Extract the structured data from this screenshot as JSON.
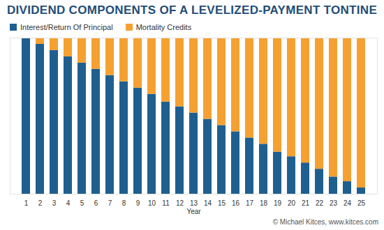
{
  "chart_data": {
    "type": "bar",
    "title": "DIVIDEND COMPONENTS OF A LEVELIZED-PAYMENT TONTINE",
    "x_label": "Year",
    "caption": "© Michael Kitces, www.kitces.com",
    "categories": [
      1,
      2,
      3,
      4,
      5,
      6,
      7,
      8,
      9,
      10,
      11,
      12,
      13,
      14,
      15,
      16,
      17,
      18,
      19,
      20,
      21,
      22,
      23,
      24,
      25
    ],
    "series": [
      {
        "name": "Interest/Return Of Principal",
        "color": "#1f5f8f",
        "values": [
          100,
          96,
          92,
          88,
          84,
          80,
          76,
          72,
          68,
          64,
          59,
          56,
          52,
          48,
          44,
          40,
          36,
          32,
          27,
          24,
          20,
          16,
          11,
          8,
          4
        ]
      },
      {
        "name": "Mortality Credits",
        "color": "#f5a132",
        "values": [
          0,
          4,
          8,
          12,
          16,
          20,
          24,
          28,
          32,
          36,
          41,
          44,
          48,
          52,
          56,
          60,
          64,
          68,
          73,
          76,
          80,
          84,
          89,
          92,
          96
        ]
      }
    ],
    "stacked": true,
    "ylim": [
      0,
      100
    ],
    "yticks": [],
    "grid": false,
    "tick_labels": "x"
  }
}
